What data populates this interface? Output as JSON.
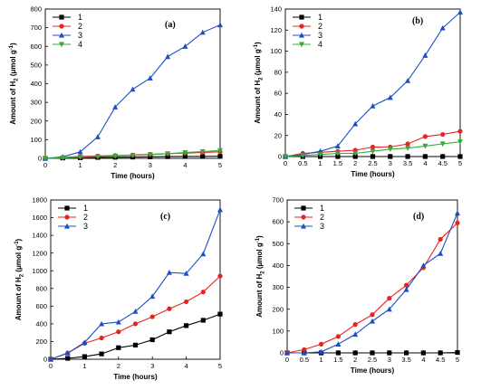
{
  "figure": {
    "background": "#ffffff",
    "series_colors": {
      "1": "#000000",
      "2": "#e8231f",
      "3": "#1c4fc4",
      "4": "#3aa83a"
    },
    "series_markers": {
      "1": "square",
      "2": "circle",
      "3": "triangle-up",
      "4": "triangle-down"
    }
  },
  "chart_data": [
    {
      "type": "line",
      "panel_label": "(a)",
      "xlabel": "Time (hours)",
      "ylabel_text": "Amount of H",
      "ylabel_sub": "2",
      "ylabel_unit": " (μmol g",
      "ylabel_sup": "-1",
      "ylabel_close": ")",
      "xlim": [
        0,
        5
      ],
      "ylim": [
        0,
        800
      ],
      "xticks": [
        0,
        1,
        2,
        3,
        4,
        5
      ],
      "xtick_labels": [
        "0",
        "1",
        "2",
        "3",
        "4",
        "5"
      ],
      "yticks": [
        0,
        100,
        200,
        300,
        400,
        500,
        600,
        700,
        800
      ],
      "ytick_labels": [
        "0",
        "100",
        "200",
        "300",
        "400",
        "500",
        "600",
        "700",
        "800"
      ],
      "legend": "top-left",
      "grid": false,
      "x": [
        0,
        0.5,
        1,
        1.5,
        2,
        2.5,
        3,
        3.5,
        4,
        4.5,
        5
      ],
      "series": [
        {
          "name": "1",
          "values": [
            0,
            2,
            3,
            5,
            6,
            7,
            8,
            9,
            10,
            10,
            11
          ]
        },
        {
          "name": "2",
          "values": [
            0,
            5,
            10,
            13,
            15,
            18,
            22,
            25,
            28,
            32,
            35
          ]
        },
        {
          "name": "3",
          "values": [
            0,
            8,
            35,
            115,
            275,
            370,
            430,
            545,
            600,
            675,
            715
          ]
        },
        {
          "name": "4",
          "values": [
            0,
            3,
            6,
            9,
            12,
            16,
            20,
            25,
            31,
            36,
            42
          ]
        }
      ]
    },
    {
      "type": "line",
      "panel_label": "(b)",
      "xlabel": "Time (hours)",
      "ylabel_text": "Amount of H",
      "ylabel_sub": "2",
      "ylabel_unit": " (μmol g",
      "ylabel_sup": "-1",
      "ylabel_close": ")",
      "xlim": [
        0,
        5
      ],
      "ylim": [
        0,
        140
      ],
      "xticks": [
        0,
        0.5,
        1,
        1.5,
        2,
        2.5,
        3,
        3.5,
        4,
        4.5,
        5
      ],
      "xtick_labels": [
        "0",
        "0.5",
        "1",
        "1.5",
        "2",
        "2.5",
        "3",
        "3.5",
        "4",
        "4.5",
        "5"
      ],
      "yticks": [
        0,
        20,
        40,
        60,
        80,
        100,
        120,
        140
      ],
      "ytick_labels": [
        "0",
        "20",
        "40",
        "60",
        "80",
        "100",
        "120",
        "140"
      ],
      "legend": "top-left",
      "grid": false,
      "x": [
        0,
        0.5,
        1,
        1.5,
        2,
        2.5,
        3,
        3.5,
        4,
        4.5,
        5
      ],
      "series": [
        {
          "name": "1",
          "values": [
            0,
            0,
            0,
            0,
            0,
            0,
            0,
            0,
            0,
            0,
            0
          ]
        },
        {
          "name": "2",
          "values": [
            0,
            3,
            4,
            5,
            6,
            9,
            9,
            12,
            19,
            21,
            24
          ]
        },
        {
          "name": "3",
          "values": [
            0,
            2,
            5,
            10,
            31,
            48,
            56,
            72,
            96,
            122,
            137
          ]
        },
        {
          "name": "4",
          "values": [
            0,
            1,
            2,
            3,
            3,
            5,
            7,
            8,
            10,
            12,
            14
          ]
        }
      ]
    },
    {
      "type": "line",
      "panel_label": "(c)",
      "xlabel": "Time (hours)",
      "ylabel_text": "Amount of H",
      "ylabel_sub": "2",
      "ylabel_unit": " (μmol g",
      "ylabel_sup": "-1",
      "ylabel_close": ")",
      "xlim": [
        0,
        5
      ],
      "ylim": [
        0,
        1800
      ],
      "xticks": [
        0,
        1,
        2,
        3,
        4,
        5
      ],
      "xtick_labels": [
        "0",
        "1",
        "2",
        "3",
        "4",
        "5"
      ],
      "yticks": [
        0,
        200,
        400,
        600,
        800,
        1000,
        1200,
        1400,
        1600,
        1800
      ],
      "ytick_labels": [
        "0",
        "200",
        "400",
        "600",
        "800",
        "1000",
        "1200",
        "1400",
        "1600",
        "1800"
      ],
      "legend": "top-left",
      "grid": false,
      "x": [
        0,
        0.5,
        1,
        1.5,
        2,
        2.5,
        3,
        3.5,
        4,
        4.5,
        5
      ],
      "series": [
        {
          "name": "1",
          "values": [
            0,
            10,
            30,
            60,
            130,
            160,
            220,
            310,
            380,
            440,
            510
          ]
        },
        {
          "name": "2",
          "values": [
            0,
            70,
            180,
            240,
            310,
            400,
            480,
            570,
            650,
            760,
            940
          ]
        },
        {
          "name": "3",
          "values": [
            0,
            70,
            190,
            400,
            420,
            540,
            710,
            980,
            970,
            1190,
            1690
          ]
        }
      ]
    },
    {
      "type": "line",
      "panel_label": "(d)",
      "xlabel": "Time (hours)",
      "ylabel_text": "Amount of H",
      "ylabel_sub": "2",
      "ylabel_unit": " (μmol g",
      "ylabel_sup": "-1",
      "ylabel_close": ")",
      "xlim": [
        0,
        5
      ],
      "ylim": [
        0,
        700
      ],
      "xticks": [
        0,
        0.5,
        1,
        1.5,
        2,
        2.5,
        3,
        3.5,
        4,
        4.5,
        5
      ],
      "xtick_labels": [
        "0",
        "0.5",
        "1",
        "1.5",
        "2",
        "2.5",
        "3",
        "3.5",
        "4",
        "4.5",
        "5"
      ],
      "yticks": [
        0,
        100,
        200,
        300,
        400,
        500,
        600,
        700
      ],
      "ytick_labels": [
        "0",
        "100",
        "200",
        "300",
        "400",
        "500",
        "600",
        "700"
      ],
      "legend": "top-left",
      "grid": false,
      "x": [
        0,
        0.5,
        1,
        1.5,
        2,
        2.5,
        3,
        3.5,
        4,
        4.5,
        5
      ],
      "series": [
        {
          "name": "1",
          "values": [
            0,
            0,
            0,
            0,
            0,
            0,
            0,
            0,
            0,
            0,
            2
          ]
        },
        {
          "name": "2",
          "values": [
            0,
            15,
            40,
            75,
            130,
            175,
            250,
            310,
            390,
            520,
            595
          ]
        },
        {
          "name": "3",
          "values": [
            0,
            0,
            5,
            40,
            85,
            145,
            200,
            290,
            400,
            455,
            640
          ]
        }
      ]
    }
  ]
}
